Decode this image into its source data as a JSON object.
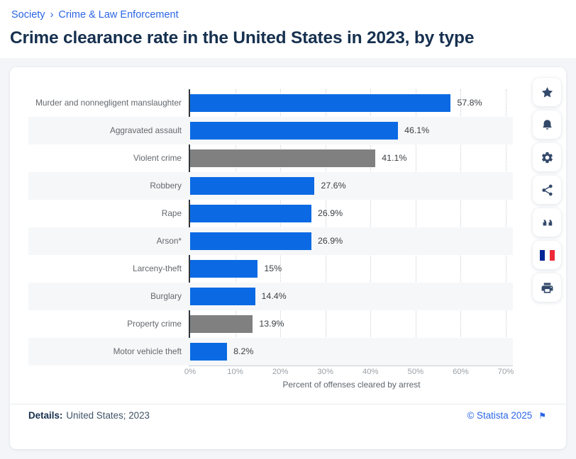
{
  "breadcrumb": {
    "items": [
      "Society",
      "Crime & Law Enforcement"
    ],
    "separator": "›"
  },
  "page_title": "Crime clearance rate in the United States in 2023, by type",
  "toolbar": {
    "buttons": [
      {
        "icon": "star-icon"
      },
      {
        "icon": "bell-icon"
      },
      {
        "icon": "gear-icon"
      },
      {
        "icon": "share-icon"
      },
      {
        "icon": "quote-icon"
      },
      {
        "icon": "french-flag-icon"
      },
      {
        "icon": "printer-icon"
      }
    ]
  },
  "chart_data": {
    "type": "bar",
    "orientation": "horizontal",
    "title": "Crime clearance rate in the United States in 2023, by type",
    "categories": [
      "Murder and nonnegligent manslaughter",
      "Aggravated assault",
      "Violent crime",
      "Robbery",
      "Rape",
      "Arson*",
      "Larceny-theft",
      "Burglary",
      "Property crime",
      "Motor vehicle theft"
    ],
    "values": [
      57.8,
      46.1,
      41.1,
      27.6,
      26.9,
      26.9,
      15,
      14.4,
      13.9,
      8.2
    ],
    "value_labels": [
      "57.8%",
      "46.1%",
      "41.1%",
      "27.6%",
      "26.9%",
      "26.9%",
      "15%",
      "14.4%",
      "13.9%",
      "8.2%"
    ],
    "bar_colors": [
      "#0b6ae3",
      "#0b6ae3",
      "#808080",
      "#0b6ae3",
      "#0b6ae3",
      "#0b6ae3",
      "#0b6ae3",
      "#0b6ae3",
      "#808080",
      "#0b6ae3"
    ],
    "xlabel": "Percent of offenses cleared by arrest",
    "x_ticks": [
      "0%",
      "10%",
      "20%",
      "30%",
      "40%",
      "50%",
      "60%",
      "70%"
    ],
    "xlim": [
      0,
      70
    ],
    "grid": "vertical-dotted",
    "legend": "none",
    "row_stripe_color": "#f6f7f9"
  },
  "footer": {
    "details_label": "Details:",
    "details_value": "United States; 2023",
    "copyright": "© Statista 2025",
    "flag_glyph": "⚑"
  },
  "colors": {
    "accent_blue": "#2b66e4",
    "bar_blue": "#0b6ae3",
    "bar_gray": "#808080",
    "title_navy": "#16304f"
  }
}
